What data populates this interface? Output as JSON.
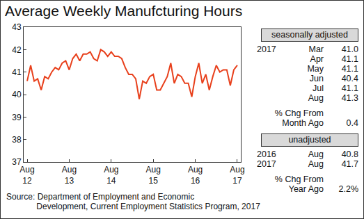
{
  "chart_data": {
    "type": "line",
    "title": "Average Weekly Manufcturing Hours",
    "categories": [
      "Aug\n12",
      null,
      null,
      null,
      null,
      null,
      null,
      null,
      null,
      null,
      null,
      null,
      "Aug\n13",
      null,
      null,
      null,
      null,
      null,
      null,
      null,
      null,
      null,
      null,
      null,
      "Aug\n14",
      null,
      null,
      null,
      null,
      null,
      null,
      null,
      null,
      null,
      null,
      null,
      "Aug\n15",
      null,
      null,
      null,
      null,
      null,
      null,
      null,
      null,
      null,
      null,
      null,
      "Aug\n16",
      null,
      null,
      null,
      null,
      null,
      null,
      null,
      null,
      null,
      null,
      null,
      "Aug\n17"
    ],
    "values": [
      40.6,
      41.3,
      40.6,
      40.7,
      40.2,
      40.8,
      40.7,
      41.0,
      41.2,
      41.1,
      41.4,
      41.5,
      41.1,
      41.6,
      41.8,
      41.5,
      41.8,
      41.8,
      41.9,
      41.6,
      41.5,
      42.0,
      41.9,
      41.7,
      41.9,
      41.7,
      41.7,
      41.6,
      41.2,
      40.9,
      40.9,
      40.7,
      39.8,
      40.6,
      40.5,
      40.8,
      40.9,
      40.2,
      40.2,
      40.5,
      40.8,
      41.4,
      40.5,
      40.9,
      40.8,
      40.5,
      40.5,
      39.9,
      40.8,
      41.4,
      40.5,
      40.9,
      40.2,
      40.8,
      41.3,
      41.0,
      41.1,
      41.1,
      40.4,
      41.1,
      41.3
    ],
    "color": "#e8401c",
    "ylim": [
      37,
      43
    ],
    "yticks": [
      37,
      38,
      39,
      40,
      41,
      42,
      43
    ],
    "grid": false,
    "source": "Source: Department of Employment and Economic\n             Development, Current Employment Statistics Program, 2017"
  },
  "panel": {
    "seasonally_adjusted": {
      "header": "seasonally adjusted",
      "rows": [
        {
          "year": "2017",
          "month": "Mar",
          "value": "41.0"
        },
        {
          "year": null,
          "month": "Apr",
          "value": "41.1"
        },
        {
          "year": null,
          "month": "May",
          "value": "41.1"
        },
        {
          "year": null,
          "month": "Jun",
          "value": "40.4"
        },
        {
          "year": null,
          "month": "Jul",
          "value": "41.1"
        },
        {
          "year": null,
          "month": "Aug",
          "value": "41.3"
        }
      ],
      "change_label": [
        "% Chg From",
        "Month Ago"
      ],
      "change_value": "0.4"
    },
    "unadjusted": {
      "header": "unadjusted",
      "rows": [
        {
          "year": "2016",
          "month": "Aug",
          "value": "40.8"
        },
        {
          "year": "2017",
          "month": "Aug",
          "value": "41.7"
        }
      ],
      "change_label": [
        "% Chg From",
        "Year Ago"
      ],
      "change_value": "2.2%"
    }
  }
}
